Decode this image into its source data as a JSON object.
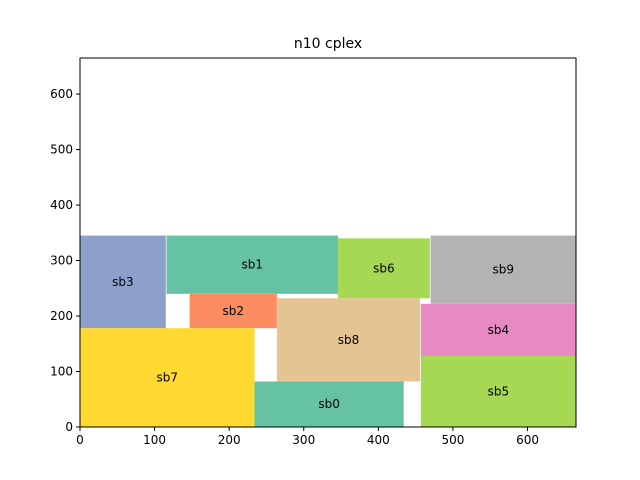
{
  "chart_data": {
    "type": "block_placement",
    "title": "n10 cplex",
    "xlim": [
      0,
      665
    ],
    "ylim": [
      0,
      665
    ],
    "xticks": [
      0,
      100,
      200,
      300,
      400,
      500,
      600
    ],
    "yticks": [
      0,
      100,
      200,
      300,
      400,
      500,
      600
    ],
    "grid": false,
    "blocks": [
      {
        "name": "sb0",
        "x": 234,
        "y": 0,
        "w": 200,
        "h": 82,
        "color": "#66c2a5"
      },
      {
        "name": "sb1",
        "x": 116,
        "y": 240,
        "w": 230,
        "h": 105,
        "color": "#66c2a5"
      },
      {
        "name": "sb2",
        "x": 147,
        "y": 178,
        "w": 117,
        "h": 62,
        "color": "#fc8d62"
      },
      {
        "name": "sb3",
        "x": 0,
        "y": 178,
        "w": 115,
        "h": 167,
        "color": "#8da0cb"
      },
      {
        "name": "sb4",
        "x": 457,
        "y": 128,
        "w": 208,
        "h": 94,
        "color": "#e78ac3"
      },
      {
        "name": "sb5",
        "x": 457,
        "y": 0,
        "w": 208,
        "h": 128,
        "color": "#a6d854"
      },
      {
        "name": "sb6",
        "x": 346,
        "y": 232,
        "w": 123,
        "h": 108,
        "color": "#a6d854"
      },
      {
        "name": "sb7",
        "x": 0,
        "y": 0,
        "w": 234,
        "h": 178,
        "color": "#ffd92f"
      },
      {
        "name": "sb8",
        "x": 264,
        "y": 82,
        "w": 192,
        "h": 150,
        "color": "#e5c494"
      },
      {
        "name": "sb9",
        "x": 470,
        "y": 222,
        "w": 195,
        "h": 123,
        "color": "#b3b3b3"
      }
    ]
  }
}
